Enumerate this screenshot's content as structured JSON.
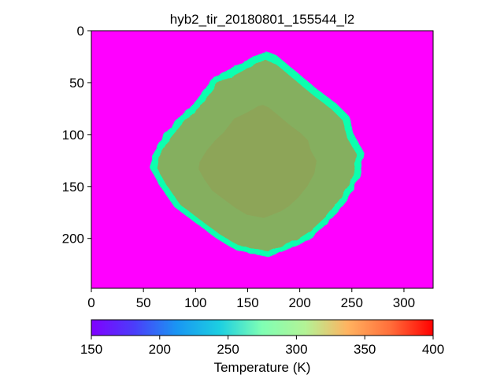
{
  "chart_data": {
    "type": "heatmap",
    "title": "hyb2_tir_20180801_155544_l2",
    "xlim": [
      0,
      328
    ],
    "ylim": [
      0,
      248
    ],
    "y_inverted": true,
    "x_ticks": [
      "0",
      "50",
      "100",
      "150",
      "200",
      "250",
      "300"
    ],
    "y_ticks": [
      "0",
      "50",
      "100",
      "150",
      "200"
    ],
    "colorbar": {
      "label": "Temperature (K)",
      "min": 150,
      "max": 400,
      "ticks": [
        "150",
        "200",
        "250",
        "300",
        "350",
        "400"
      ],
      "colormap": "rainbow",
      "orientation": "horizontal"
    },
    "background_temperature_K": 150,
    "object": {
      "description_values": "asteroid disk",
      "interior_temperature_K": 340,
      "limb_temperature_K": 280,
      "outline": [
        [
          58,
          120
        ],
        [
          70,
          100
        ],
        [
          85,
          82
        ],
        [
          100,
          68
        ],
        [
          110,
          55
        ],
        [
          118,
          44
        ],
        [
          135,
          36
        ],
        [
          150,
          28
        ],
        [
          160,
          22
        ],
        [
          168,
          20
        ],
        [
          178,
          24
        ],
        [
          195,
          38
        ],
        [
          215,
          55
        ],
        [
          235,
          70
        ],
        [
          247,
          82
        ],
        [
          252,
          100
        ],
        [
          262,
          118
        ],
        [
          258,
          140
        ],
        [
          246,
          162
        ],
        [
          230,
          182
        ],
        [
          214,
          197
        ],
        [
          200,
          206
        ],
        [
          185,
          212
        ],
        [
          170,
          218
        ],
        [
          160,
          216
        ],
        [
          140,
          212
        ],
        [
          120,
          200
        ],
        [
          100,
          185
        ],
        [
          80,
          170
        ],
        [
          66,
          150
        ],
        [
          56,
          132
        ]
      ]
    }
  }
}
